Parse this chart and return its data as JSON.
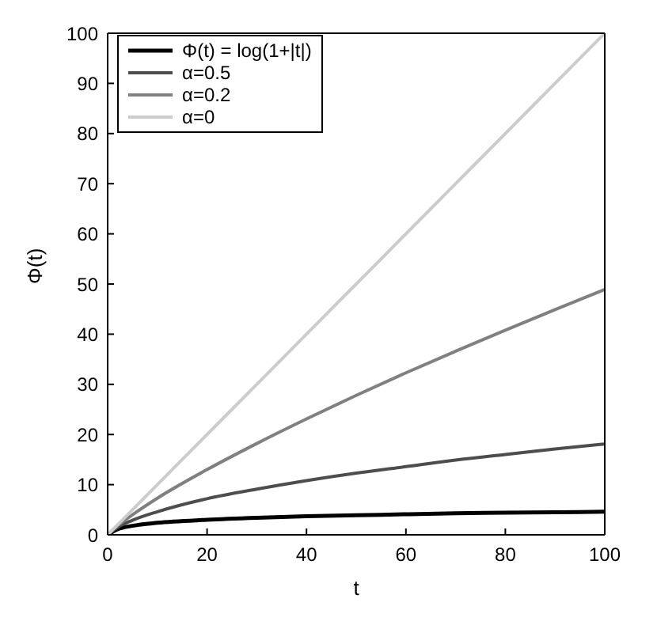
{
  "chart_data": {
    "type": "line",
    "xlabel": "t",
    "ylabel": "Φ(t)",
    "x": [
      0,
      2,
      5,
      10,
      20,
      30,
      40,
      50,
      60,
      70,
      80,
      90,
      100
    ],
    "series": [
      {
        "name": "Φ(t) = log(1+|t|)",
        "color": "#000000",
        "values": [
          0,
          1.1,
          1.8,
          2.4,
          3.0,
          3.4,
          3.7,
          3.9,
          4.1,
          4.3,
          4.4,
          4.5,
          4.6
        ]
      },
      {
        "name": "α=0.5",
        "color": "#4d4d4d",
        "values": [
          0,
          1.5,
          2.9,
          4.6,
          7.2,
          9.1,
          10.8,
          12.3,
          13.6,
          14.9,
          16,
          17.1,
          18.1
        ]
      },
      {
        "name": "α=0.2",
        "color": "#808080",
        "values": [
          0,
          1.8,
          4.0,
          7.3,
          13.0,
          18.2,
          23.1,
          27.8,
          32.3,
          36.6,
          40.8,
          44.9,
          48.9
        ]
      },
      {
        "name": "α=0",
        "color": "#cccccc",
        "values": [
          0,
          2,
          5,
          10,
          20,
          30,
          40,
          50,
          60,
          70,
          80,
          90,
          100
        ]
      }
    ],
    "xlim": [
      0,
      100
    ],
    "xticks": [
      0,
      20,
      40,
      60,
      80,
      100
    ],
    "ylim": [
      0,
      100
    ],
    "yticks": [
      0,
      10,
      20,
      30,
      40,
      50,
      60,
      70,
      80,
      90,
      100
    ],
    "legend": "top left",
    "marker": "none",
    "line_style": "solid",
    "grid": false
  }
}
